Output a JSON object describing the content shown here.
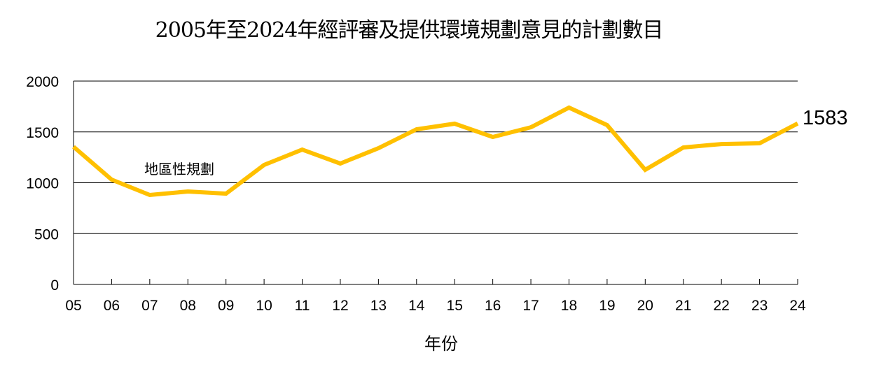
{
  "chart_data": {
    "type": "line",
    "title": "2005年至2024年經評審及提供環境規劃意見的計劃數目",
    "xlabel": "年份",
    "ylabel": "",
    "categories": [
      "05",
      "06",
      "07",
      "08",
      "09",
      "10",
      "11",
      "12",
      "13",
      "14",
      "15",
      "16",
      "17",
      "18",
      "19",
      "20",
      "21",
      "22",
      "23",
      "24"
    ],
    "series": [
      {
        "name": "地區性規劃",
        "color": "#FFC000",
        "values": [
          1354,
          1031,
          880,
          914,
          893,
          1175,
          1326,
          1189,
          1340,
          1526,
          1581,
          1450,
          1546,
          1739,
          1567,
          1127,
          1347,
          1381,
          1388,
          1583
        ]
      }
    ],
    "ylim": [
      0,
      2000
    ],
    "yticks": [
      0,
      500,
      1000,
      1500,
      2000
    ],
    "grid": true,
    "legend": "none",
    "annotations": [
      {
        "text": "地區性規劃",
        "near": "07-09"
      },
      {
        "text": "1583",
        "near": "24"
      }
    ]
  },
  "labels": {
    "title": "2005年至2024年經評審及提供環境規劃意見的計劃數目",
    "xlabel": "年份",
    "series_annotation": "地區性規劃",
    "end_value": "1583"
  }
}
